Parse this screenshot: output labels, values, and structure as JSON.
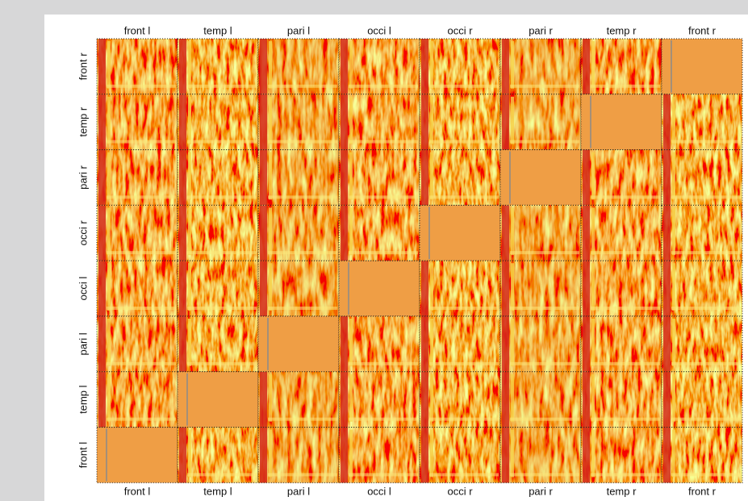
{
  "top_labels": [
    "front l",
    "temp l",
    "pari l",
    "occi l",
    "occi r",
    "pari r",
    "temp r",
    "front r"
  ],
  "row_labels": [
    "front r",
    "temp r",
    "pari r",
    "occi r",
    "occi l",
    "pari l",
    "temp l",
    "front l"
  ],
  "bottom_labels": [
    "front l",
    "temp l",
    "pari l",
    "occi l",
    "occi r",
    "pari r",
    "temp r",
    "front r"
  ]
}
